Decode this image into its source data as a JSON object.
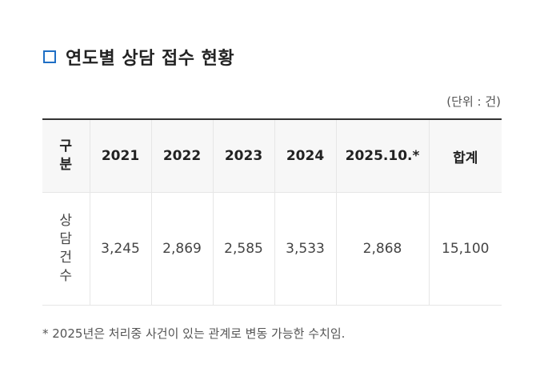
{
  "title": "연도별 상담 접수 현황",
  "unit_note": "(단위 : 건)",
  "table": {
    "header_label": "구분",
    "columns": [
      "2021",
      "2022",
      "2023",
      "2024",
      "2025.10.*",
      "합계"
    ],
    "row_label": "상담건수",
    "values": [
      "3,245",
      "2,869",
      "2,585",
      "3,533",
      "2,868",
      "15,100"
    ]
  },
  "footnote": "* 2025년은 처리중 사건이 있는 관계로 변동 가능한 수치임.",
  "colors": {
    "title_icon": "#1f6fc5",
    "header_bg": "#f7f7f7",
    "table_top_border": "#333333"
  },
  "icons": {
    "title_icon": "square-outline-icon"
  }
}
